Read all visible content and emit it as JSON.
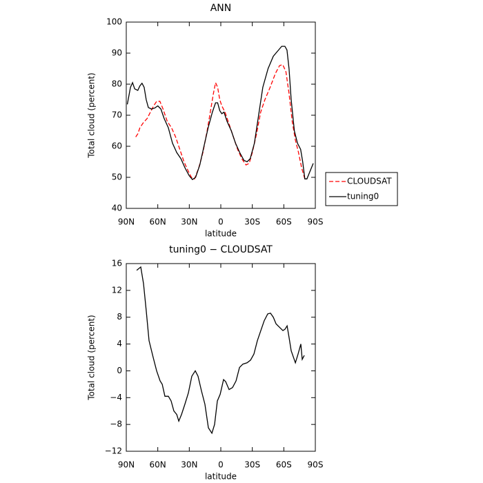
{
  "chart_data": [
    {
      "type": "line",
      "title": "ANN",
      "xlabel": "latitude",
      "ylabel": "Total cloud (percent)",
      "xlim": [
        90,
        -90
      ],
      "xticks": [
        {
          "value": 90,
          "label": "90N"
        },
        {
          "value": 60,
          "label": "60N"
        },
        {
          "value": 30,
          "label": "30N"
        },
        0,
        {
          "value": -30,
          "label": "30S"
        },
        {
          "value": -60,
          "label": "60S"
        },
        {
          "value": -90,
          "label": "90S"
        }
      ],
      "ylim": [
        40,
        100
      ],
      "yticks": [
        40,
        50,
        60,
        70,
        80,
        90,
        100
      ],
      "legend": "right",
      "series": [
        {
          "name": "CLOUDSAT",
          "color": "#ff0000",
          "line_style": "dashed",
          "x": [
            81,
            79,
            77,
            74,
            70,
            67,
            64,
            61,
            58,
            55,
            51,
            47,
            43,
            39,
            35,
            31,
            28,
            25,
            21,
            17,
            13,
            10,
            7,
            5,
            3,
            1,
            -1,
            -4,
            -8,
            -12,
            -16,
            -20,
            -24,
            -27,
            -30,
            -34,
            -38,
            -42,
            -47,
            -52,
            -56,
            -59,
            -62,
            -65,
            -68,
            -71,
            -74,
            -77,
            -80
          ],
          "values": [
            63,
            64,
            66,
            67.5,
            69,
            71,
            73,
            74.5,
            74.5,
            72,
            68,
            66,
            63,
            59,
            55,
            52,
            50,
            49.5,
            53,
            58,
            65,
            71,
            77,
            80.5,
            79,
            75,
            73,
            71,
            67,
            63,
            59,
            56,
            54,
            54.5,
            58,
            64,
            71,
            75,
            79,
            83.5,
            86,
            86.3,
            84,
            77,
            68,
            62,
            58,
            53,
            49.5
          ]
        },
        {
          "name": "tuning0",
          "color": "#000000",
          "line_style": "solid",
          "x": [
            89,
            86,
            84,
            82,
            79,
            77,
            75,
            73,
            71,
            69,
            66,
            63,
            60,
            57,
            54,
            50,
            46,
            42,
            38,
            34,
            30,
            27,
            24,
            20,
            16,
            12,
            8,
            5,
            3,
            1,
            -1,
            -3,
            -6,
            -10,
            -14,
            -18,
            -22,
            -25,
            -28,
            -32,
            -36,
            -40,
            -45,
            -50,
            -55,
            -58,
            -61,
            -63,
            -65,
            -67,
            -70,
            -73,
            -76,
            -78,
            -80,
            -82,
            -85,
            -88
          ],
          "values": [
            73.5,
            79,
            80.5,
            78.5,
            78,
            79.5,
            80.3,
            79,
            75,
            72.5,
            72,
            72.3,
            73,
            72,
            69,
            66,
            61,
            58,
            56,
            53,
            50.5,
            49.3,
            50,
            54,
            60,
            66,
            71,
            74,
            74,
            71.5,
            70.5,
            71,
            68,
            65,
            61,
            58,
            55.5,
            55,
            56,
            61,
            70,
            79,
            85,
            89,
            91,
            92.2,
            92.2,
            91,
            85,
            75,
            65,
            61,
            59,
            55,
            49.5,
            49.5,
            52,
            54.5
          ]
        }
      ]
    },
    {
      "type": "line",
      "title": "tuning0 − CLOUDSAT",
      "xlabel": "latitude",
      "ylabel": "Total cloud (percent)",
      "xlim": [
        90,
        -90
      ],
      "xticks": [
        {
          "value": 90,
          "label": "90N"
        },
        {
          "value": 60,
          "label": "60N"
        },
        {
          "value": 30,
          "label": "30N"
        },
        0,
        {
          "value": -30,
          "label": "30S"
        },
        {
          "value": -60,
          "label": "60S"
        },
        {
          "value": -90,
          "label": "90S"
        }
      ],
      "ylim": [
        -12,
        16
      ],
      "yticks": [
        {
          "value": -12,
          "label": "−12"
        },
        {
          "value": -8,
          "label": "−8"
        },
        {
          "value": -4,
          "label": "−4"
        },
        0,
        4,
        8,
        12,
        16
      ],
      "series": [
        {
          "color": "#000000",
          "line_style": "solid",
          "x": [
            80.1,
            76.2,
            73.6,
            71,
            68.3,
            64.4,
            61.1,
            57.8,
            55.8,
            53.2,
            49.9,
            47.3,
            44.7,
            42,
            40,
            37.4,
            34.2,
            30.9,
            27.6,
            24.3,
            21.7,
            18.4,
            15.1,
            11.8,
            8.5,
            5.9,
            3.3,
            0.6,
            -2.6,
            -4.6,
            -7.9,
            -11.2,
            -14.5,
            -17.8,
            -21,
            -25,
            -28.3,
            -31.5,
            -34.8,
            -38.1,
            -41.4,
            -44.7,
            -47.3,
            -50,
            -52.6,
            -55.9,
            -59.1,
            -61.1,
            -63.1,
            -65,
            -67,
            -71,
            -73.6,
            -76.2,
            -77.5,
            -79.5
          ],
          "values": [
            15,
            15.5,
            13,
            9,
            4.5,
            2,
            0,
            -1.5,
            -2,
            -3.8,
            -3.8,
            -4.5,
            -6,
            -6.5,
            -7.5,
            -6.5,
            -5,
            -3.3,
            -0.8,
            0,
            -0.8,
            -3,
            -5,
            -8.5,
            -9.3,
            -8,
            -4.5,
            -3.5,
            -1.3,
            -1.6,
            -2.8,
            -2.5,
            -1.5,
            0.5,
            1,
            1.2,
            1.6,
            2.5,
            4.5,
            6,
            7.5,
            8.5,
            8.6,
            8,
            7,
            6.5,
            6,
            6.2,
            6.7,
            5,
            3,
            1.2,
            2.5,
            4,
            1.7,
            2.3
          ]
        }
      ]
    }
  ]
}
